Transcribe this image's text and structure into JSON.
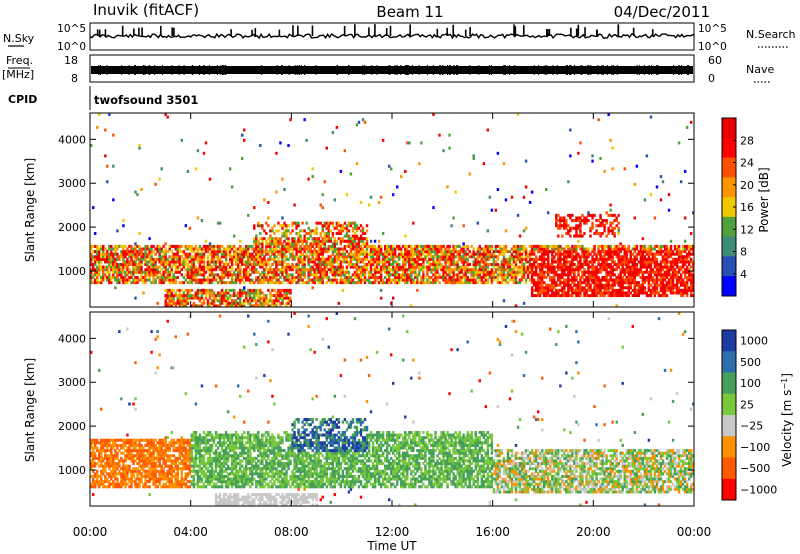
{
  "header": {
    "station": "Inuvik (fitACF)",
    "beam": "Beam 11",
    "date": "04/Dec/2011"
  },
  "noise_panel": {
    "left_label": "N.Sky",
    "left_ticks": [
      "10^5",
      "10^0"
    ],
    "right_label": "N.Search",
    "right_ticks": [
      "10^5",
      "10^0"
    ]
  },
  "freq_panel": {
    "left_label_top": "Freq.",
    "left_label_bottom": "[MHz]",
    "left_ticks": [
      "18",
      "8"
    ],
    "right_label": "Nave",
    "right_ticks": [
      "60",
      "0"
    ]
  },
  "cpid": {
    "label": "CPID",
    "value": "twofsound 3501"
  },
  "colors": {
    "power": [
      "#0000ff",
      "#2850b4",
      "#3c8c78",
      "#50a03c",
      "#f0c800",
      "#ff9600",
      "#ff5000",
      "#ff0000",
      "#e60000"
    ],
    "velocity": [
      "#ff0000",
      "#ff5a00",
      "#ff9100",
      "#c8c8c8",
      "#78c83c",
      "#46a05a",
      "#2d6eaa",
      "#1e3ca0"
    ]
  },
  "chart_data": [
    {
      "type": "heatmap",
      "name": "power",
      "xlabel": "",
      "ylabel": "Slant Range [km]",
      "xlim": [
        "00:00",
        "24:00"
      ],
      "ylim": [
        180,
        4600
      ],
      "yticks": [
        1000,
        2000,
        3000,
        4000
      ],
      "colorbar": {
        "label": "Power [dB]",
        "range": [
          0,
          32
        ],
        "ticks": [
          4,
          8,
          12,
          16,
          20,
          24,
          28
        ]
      },
      "echo_regions": [
        {
          "start_hour": 0,
          "end_hour": 24,
          "range_km": [
            700,
            1600
          ],
          "level": "12-28 dB"
        },
        {
          "start_hour": 6.5,
          "end_hour": 11,
          "range_km": [
            1600,
            2100
          ],
          "level": "12-24 dB"
        },
        {
          "start_hour": 3,
          "end_hour": 8,
          "range_km": [
            200,
            600
          ],
          "level": "20-28 dB"
        },
        {
          "start_hour": 17.5,
          "end_hour": 24,
          "range_km": [
            400,
            1500
          ],
          "level": "24-32 dB"
        },
        {
          "start_hour": 18.5,
          "end_hour": 21,
          "range_km": [
            1800,
            2300
          ],
          "level": "24-32 dB"
        }
      ]
    },
    {
      "type": "heatmap",
      "name": "velocity",
      "xlabel": "Time UT",
      "ylabel": "Slant Range [km]",
      "xlim": [
        "00:00",
        "24:00"
      ],
      "ylim": [
        180,
        4600
      ],
      "xticks": [
        "00:00",
        "04:00",
        "08:00",
        "12:00",
        "16:00",
        "20:00",
        "00:00"
      ],
      "yticks": [
        1000,
        2000,
        3000,
        4000
      ],
      "colorbar": {
        "label": "Velocity [m s^-1]",
        "ticks": [
          "1000",
          "500",
          "100",
          "25",
          "−25",
          "−100",
          "−500",
          "−1000"
        ]
      },
      "echo_regions": [
        {
          "start_hour": 0,
          "end_hour": 4,
          "range_km": [
            600,
            1700
          ],
          "level": "-100 to -500 m/s"
        },
        {
          "start_hour": 4,
          "end_hour": 16,
          "range_km": [
            600,
            1900
          ],
          "level": "25 to 500 m/s"
        },
        {
          "start_hour": 8,
          "end_hour": 11,
          "range_km": [
            1400,
            2200
          ],
          "level": "500 to 1000 m/s"
        },
        {
          "start_hour": 16,
          "end_hour": 24,
          "range_km": [
            500,
            1500
          ],
          "level": "-25 to 100 m/s"
        },
        {
          "start_hour": 5,
          "end_hour": 9,
          "range_km": [
            200,
            500
          ],
          "level": "-25 to 25 m/s"
        }
      ]
    }
  ]
}
